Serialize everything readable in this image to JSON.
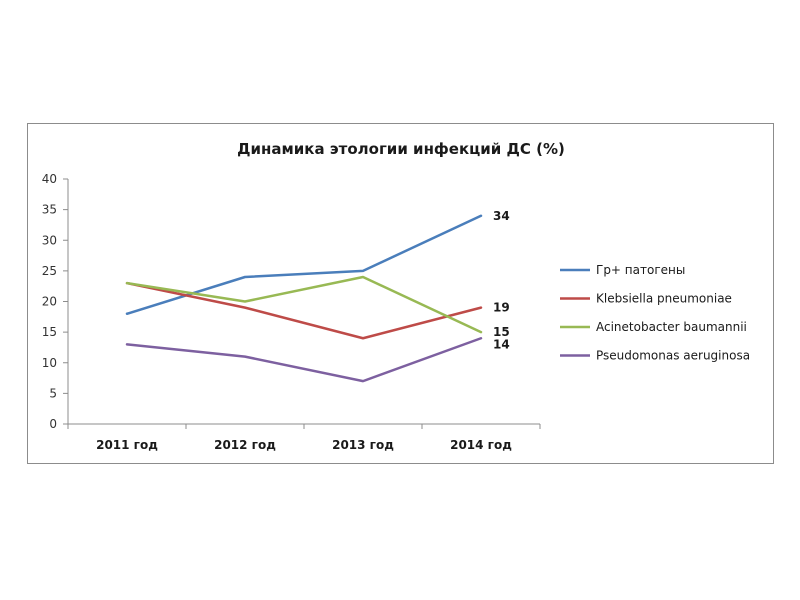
{
  "chart_data": {
    "type": "line",
    "title": "Динамика этологии инфекций ДС (%)",
    "categories": [
      "2011 год",
      "2012 год",
      "2013 год",
      "2014 год"
    ],
    "ylim": [
      0,
      40
    ],
    "yticks": [
      0,
      5,
      10,
      15,
      20,
      25,
      30,
      35,
      40
    ],
    "grid": false,
    "legend": "right",
    "series": [
      {
        "name": "Гр+ патогены",
        "color": "#4a7ebb",
        "values": [
          18,
          24,
          25,
          34
        ],
        "end_label": "34"
      },
      {
        "name": "Klebsiella pneumoniae",
        "color": "#be4b48",
        "values": [
          23,
          19,
          14,
          19
        ],
        "end_label": "19"
      },
      {
        "name": "Acinetobacter baumannii",
        "color": "#98b954",
        "values": [
          23,
          20,
          24,
          15
        ],
        "end_label": "15"
      },
      {
        "name": "Pseudomonas aeruginosa",
        "color": "#7d60a0",
        "values": [
          13,
          11,
          7,
          14
        ],
        "end_label": "14"
      }
    ]
  }
}
